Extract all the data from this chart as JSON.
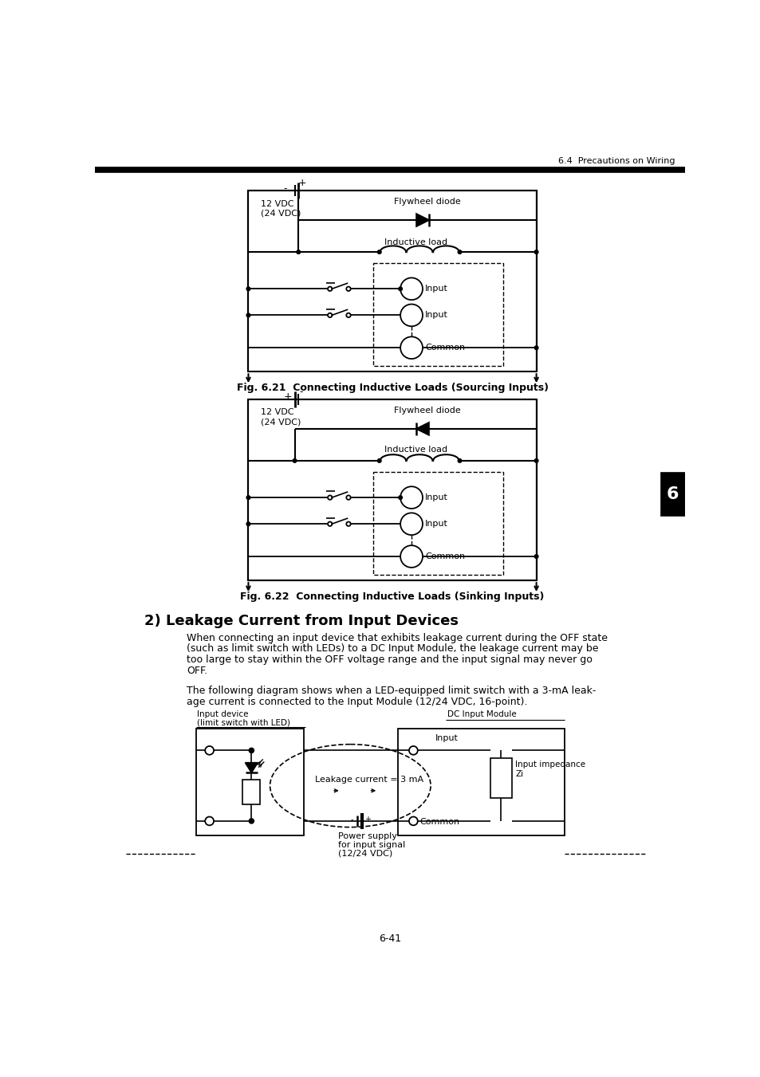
{
  "page_header": "6.4  Precautions on Wiring",
  "fig21_caption": "Fig. 6.21  Connecting Inductive Loads (Sourcing Inputs)",
  "fig22_caption": "Fig. 6.22  Connecting Inductive Loads (Sinking Inputs)",
  "section_title": "2) Leakage Current from Input Devices",
  "para1_lines": [
    "When connecting an input device that exhibits leakage current during the OFF state",
    "(such as limit switch with LEDs) to a DC Input Module, the leakage current may be",
    "too large to stay within the OFF voltage range and the input signal may never go",
    "OFF."
  ],
  "para2_lines": [
    "The following diagram shows when a LED-equipped limit switch with a 3-mA leak-",
    "age current is connected to the Input Module (12/24 VDC, 16-point)."
  ],
  "label_12vdc": "12 VDC\n(24 VDC)",
  "label_flywheel": "Flywheel diode",
  "label_inductive": "Inductive load",
  "label_input": "Input",
  "label_common": "Common",
  "page_num": "6-41",
  "bg_color": "#ffffff"
}
